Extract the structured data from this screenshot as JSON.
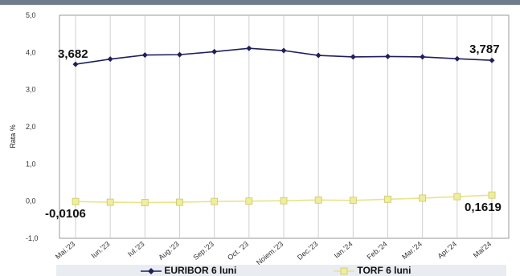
{
  "chart_data": {
    "type": "line",
    "ylabel": "Rata %",
    "ylim": [
      -1.0,
      5.0
    ],
    "yticks": [
      "-1,0",
      "0,0",
      "1,0",
      "2,0",
      "3,0",
      "4,0",
      "5,0"
    ],
    "categories": [
      "Mai.'23",
      "Iun.'23",
      "Iul.'23",
      "Aug.'23",
      "Sep.'23",
      "Oct. '23",
      "Noiem.'23",
      "Dec.'23",
      "Ian.'24",
      "Feb.'24",
      "Mar.'24",
      "Apr.'24",
      "Mai'24"
    ],
    "series": [
      {
        "name": "EURIBOR 6 luni",
        "color": "#1f1f5c",
        "marker": "diamond",
        "values": [
          3.682,
          3.82,
          3.93,
          3.94,
          4.02,
          4.11,
          4.05,
          3.92,
          3.88,
          3.89,
          3.88,
          3.83,
          3.787
        ]
      },
      {
        "name": "TORF 6 luni",
        "color": "#f0ee9a",
        "marker": "square",
        "values": [
          -0.0106,
          -0.03,
          -0.04,
          -0.03,
          -0.01,
          0.0,
          0.01,
          0.03,
          0.02,
          0.05,
          0.08,
          0.12,
          0.1619
        ]
      }
    ],
    "data_labels": [
      {
        "text": "3,682"
      },
      {
        "text": "3,787"
      },
      {
        "text": "-0,0106"
      },
      {
        "text": "0,1619"
      }
    ],
    "grid": true,
    "legend": "bottom"
  }
}
